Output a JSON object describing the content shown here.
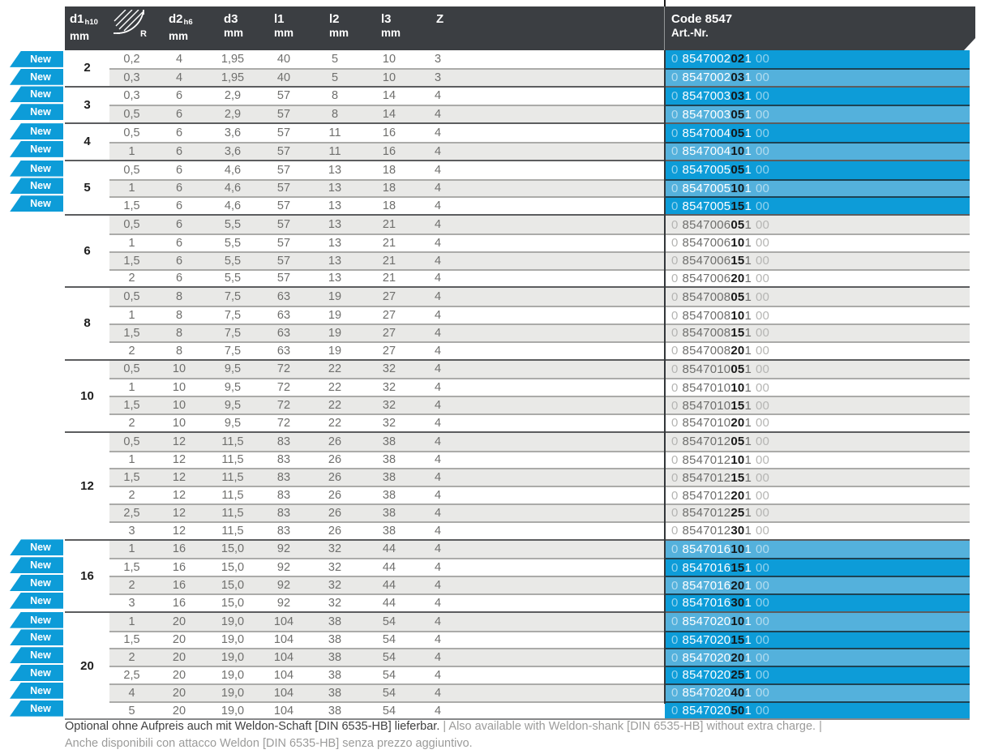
{
  "table": {
    "badge_label": "New",
    "columns": {
      "d1": {
        "main": "d1",
        "sub": "h10",
        "unit": "mm"
      },
      "r": {
        "icon": "corner-radius-icon",
        "label": "R"
      },
      "d2": {
        "main": "d2",
        "sub": "h6",
        "unit": "mm"
      },
      "d3": {
        "main": "d3",
        "unit": "mm"
      },
      "l1": {
        "main": "l1",
        "unit": "mm"
      },
      "l2": {
        "main": "l2",
        "unit": "mm"
      },
      "l3": {
        "main": "l3",
        "unit": "mm"
      },
      "z": {
        "main": "Z"
      },
      "code": {
        "line1": "Code 8547",
        "line2": "Art.-Nr."
      }
    },
    "groups": [
      {
        "d1": "2",
        "rows": [
          {
            "new": true,
            "r": "0,2",
            "d2": "4",
            "d3": "1,95",
            "l1": "40",
            "l2": "5",
            "l3": "10",
            "z": "3",
            "art": {
              "a": "0",
              "b": "8547002",
              "c": "02",
              "d": "1",
              "e": "00"
            }
          },
          {
            "new": true,
            "r": "0,3",
            "d2": "4",
            "d3": "1,95",
            "l1": "40",
            "l2": "5",
            "l3": "10",
            "z": "3",
            "art": {
              "a": "0",
              "b": "8547002",
              "c": "03",
              "d": "1",
              "e": "00"
            }
          }
        ]
      },
      {
        "d1": "3",
        "rows": [
          {
            "new": true,
            "r": "0,3",
            "d2": "6",
            "d3": "2,9",
            "l1": "57",
            "l2": "8",
            "l3": "14",
            "z": "4",
            "art": {
              "a": "0",
              "b": "8547003",
              "c": "03",
              "d": "1",
              "e": "00"
            }
          },
          {
            "new": true,
            "r": "0,5",
            "d2": "6",
            "d3": "2,9",
            "l1": "57",
            "l2": "8",
            "l3": "14",
            "z": "4",
            "art": {
              "a": "0",
              "b": "8547003",
              "c": "05",
              "d": "1",
              "e": "00"
            }
          }
        ]
      },
      {
        "d1": "4",
        "rows": [
          {
            "new": true,
            "r": "0,5",
            "d2": "6",
            "d3": "3,6",
            "l1": "57",
            "l2": "11",
            "l3": "16",
            "z": "4",
            "art": {
              "a": "0",
              "b": "8547004",
              "c": "05",
              "d": "1",
              "e": "00"
            }
          },
          {
            "new": true,
            "r": "1",
            "d2": "6",
            "d3": "3,6",
            "l1": "57",
            "l2": "11",
            "l3": "16",
            "z": "4",
            "art": {
              "a": "0",
              "b": "8547004",
              "c": "10",
              "d": "1",
              "e": "00"
            }
          }
        ]
      },
      {
        "d1": "5",
        "rows": [
          {
            "new": true,
            "r": "0,5",
            "d2": "6",
            "d3": "4,6",
            "l1": "57",
            "l2": "13",
            "l3": "18",
            "z": "4",
            "art": {
              "a": "0",
              "b": "8547005",
              "c": "05",
              "d": "1",
              "e": "00"
            }
          },
          {
            "new": true,
            "r": "1",
            "d2": "6",
            "d3": "4,6",
            "l1": "57",
            "l2": "13",
            "l3": "18",
            "z": "4",
            "art": {
              "a": "0",
              "b": "8547005",
              "c": "10",
              "d": "1",
              "e": "00"
            }
          },
          {
            "new": true,
            "r": "1,5",
            "d2": "6",
            "d3": "4,6",
            "l1": "57",
            "l2": "13",
            "l3": "18",
            "z": "4",
            "art": {
              "a": "0",
              "b": "8547005",
              "c": "15",
              "d": "1",
              "e": "00"
            }
          }
        ]
      },
      {
        "d1": "6",
        "rows": [
          {
            "new": false,
            "r": "0,5",
            "d2": "6",
            "d3": "5,5",
            "l1": "57",
            "l2": "13",
            "l3": "21",
            "z": "4",
            "art": {
              "a": "0",
              "b": "8547006",
              "c": "05",
              "d": "1",
              "e": "00"
            }
          },
          {
            "new": false,
            "r": "1",
            "d2": "6",
            "d3": "5,5",
            "l1": "57",
            "l2": "13",
            "l3": "21",
            "z": "4",
            "art": {
              "a": "0",
              "b": "8547006",
              "c": "10",
              "d": "1",
              "e": "00"
            }
          },
          {
            "new": false,
            "r": "1,5",
            "d2": "6",
            "d3": "5,5",
            "l1": "57",
            "l2": "13",
            "l3": "21",
            "z": "4",
            "art": {
              "a": "0",
              "b": "8547006",
              "c": "15",
              "d": "1",
              "e": "00"
            }
          },
          {
            "new": false,
            "r": "2",
            "d2": "6",
            "d3": "5,5",
            "l1": "57",
            "l2": "13",
            "l3": "21",
            "z": "4",
            "art": {
              "a": "0",
              "b": "8547006",
              "c": "20",
              "d": "1",
              "e": "00"
            }
          }
        ]
      },
      {
        "d1": "8",
        "rows": [
          {
            "new": false,
            "r": "0,5",
            "d2": "8",
            "d3": "7,5",
            "l1": "63",
            "l2": "19",
            "l3": "27",
            "z": "4",
            "art": {
              "a": "0",
              "b": "8547008",
              "c": "05",
              "d": "1",
              "e": "00"
            }
          },
          {
            "new": false,
            "r": "1",
            "d2": "8",
            "d3": "7,5",
            "l1": "63",
            "l2": "19",
            "l3": "27",
            "z": "4",
            "art": {
              "a": "0",
              "b": "8547008",
              "c": "10",
              "d": "1",
              "e": "00"
            }
          },
          {
            "new": false,
            "r": "1,5",
            "d2": "8",
            "d3": "7,5",
            "l1": "63",
            "l2": "19",
            "l3": "27",
            "z": "4",
            "art": {
              "a": "0",
              "b": "8547008",
              "c": "15",
              "d": "1",
              "e": "00"
            }
          },
          {
            "new": false,
            "r": "2",
            "d2": "8",
            "d3": "7,5",
            "l1": "63",
            "l2": "19",
            "l3": "27",
            "z": "4",
            "art": {
              "a": "0",
              "b": "8547008",
              "c": "20",
              "d": "1",
              "e": "00"
            }
          }
        ]
      },
      {
        "d1": "10",
        "rows": [
          {
            "new": false,
            "r": "0,5",
            "d2": "10",
            "d3": "9,5",
            "l1": "72",
            "l2": "22",
            "l3": "32",
            "z": "4",
            "art": {
              "a": "0",
              "b": "8547010",
              "c": "05",
              "d": "1",
              "e": "00"
            }
          },
          {
            "new": false,
            "r": "1",
            "d2": "10",
            "d3": "9,5",
            "l1": "72",
            "l2": "22",
            "l3": "32",
            "z": "4",
            "art": {
              "a": "0",
              "b": "8547010",
              "c": "10",
              "d": "1",
              "e": "00"
            }
          },
          {
            "new": false,
            "r": "1,5",
            "d2": "10",
            "d3": "9,5",
            "l1": "72",
            "l2": "22",
            "l3": "32",
            "z": "4",
            "art": {
              "a": "0",
              "b": "8547010",
              "c": "15",
              "d": "1",
              "e": "00"
            }
          },
          {
            "new": false,
            "r": "2",
            "d2": "10",
            "d3": "9,5",
            "l1": "72",
            "l2": "22",
            "l3": "32",
            "z": "4",
            "art": {
              "a": "0",
              "b": "8547010",
              "c": "20",
              "d": "1",
              "e": "00"
            }
          }
        ]
      },
      {
        "d1": "12",
        "rows": [
          {
            "new": false,
            "r": "0,5",
            "d2": "12",
            "d3": "11,5",
            "l1": "83",
            "l2": "26",
            "l3": "38",
            "z": "4",
            "art": {
              "a": "0",
              "b": "8547012",
              "c": "05",
              "d": "1",
              "e": "00"
            }
          },
          {
            "new": false,
            "r": "1",
            "d2": "12",
            "d3": "11,5",
            "l1": "83",
            "l2": "26",
            "l3": "38",
            "z": "4",
            "art": {
              "a": "0",
              "b": "8547012",
              "c": "10",
              "d": "1",
              "e": "00"
            }
          },
          {
            "new": false,
            "r": "1,5",
            "d2": "12",
            "d3": "11,5",
            "l1": "83",
            "l2": "26",
            "l3": "38",
            "z": "4",
            "art": {
              "a": "0",
              "b": "8547012",
              "c": "15",
              "d": "1",
              "e": "00"
            }
          },
          {
            "new": false,
            "r": "2",
            "d2": "12",
            "d3": "11,5",
            "l1": "83",
            "l2": "26",
            "l3": "38",
            "z": "4",
            "art": {
              "a": "0",
              "b": "8547012",
              "c": "20",
              "d": "1",
              "e": "00"
            }
          },
          {
            "new": false,
            "r": "2,5",
            "d2": "12",
            "d3": "11,5",
            "l1": "83",
            "l2": "26",
            "l3": "38",
            "z": "4",
            "art": {
              "a": "0",
              "b": "8547012",
              "c": "25",
              "d": "1",
              "e": "00"
            }
          },
          {
            "new": false,
            "r": "3",
            "d2": "12",
            "d3": "11,5",
            "l1": "83",
            "l2": "26",
            "l3": "38",
            "z": "4",
            "art": {
              "a": "0",
              "b": "8547012",
              "c": "30",
              "d": "1",
              "e": "00"
            }
          }
        ]
      },
      {
        "d1": "16",
        "rows": [
          {
            "new": true,
            "r": "1",
            "d2": "16",
            "d3": "15,0",
            "l1": "92",
            "l2": "32",
            "l3": "44",
            "z": "4",
            "art": {
              "a": "0",
              "b": "8547016",
              "c": "10",
              "d": "1",
              "e": "00"
            }
          },
          {
            "new": true,
            "r": "1,5",
            "d2": "16",
            "d3": "15,0",
            "l1": "92",
            "l2": "32",
            "l3": "44",
            "z": "4",
            "art": {
              "a": "0",
              "b": "8547016",
              "c": "15",
              "d": "1",
              "e": "00"
            }
          },
          {
            "new": true,
            "r": "2",
            "d2": "16",
            "d3": "15,0",
            "l1": "92",
            "l2": "32",
            "l3": "44",
            "z": "4",
            "art": {
              "a": "0",
              "b": "8547016",
              "c": "20",
              "d": "1",
              "e": "00"
            }
          },
          {
            "new": true,
            "r": "3",
            "d2": "16",
            "d3": "15,0",
            "l1": "92",
            "l2": "32",
            "l3": "44",
            "z": "4",
            "art": {
              "a": "0",
              "b": "8547016",
              "c": "30",
              "d": "1",
              "e": "00"
            }
          }
        ]
      },
      {
        "d1": "20",
        "rows": [
          {
            "new": true,
            "r": "1",
            "d2": "20",
            "d3": "19,0",
            "l1": "104",
            "l2": "38",
            "l3": "54",
            "z": "4",
            "art": {
              "a": "0",
              "b": "8547020",
              "c": "10",
              "d": "1",
              "e": "00"
            }
          },
          {
            "new": true,
            "r": "1,5",
            "d2": "20",
            "d3": "19,0",
            "l1": "104",
            "l2": "38",
            "l3": "54",
            "z": "4",
            "art": {
              "a": "0",
              "b": "8547020",
              "c": "15",
              "d": "1",
              "e": "00"
            }
          },
          {
            "new": true,
            "r": "2",
            "d2": "20",
            "d3": "19,0",
            "l1": "104",
            "l2": "38",
            "l3": "54",
            "z": "4",
            "art": {
              "a": "0",
              "b": "8547020",
              "c": "20",
              "d": "1",
              "e": "00"
            }
          },
          {
            "new": true,
            "r": "2,5",
            "d2": "20",
            "d3": "19,0",
            "l1": "104",
            "l2": "38",
            "l3": "54",
            "z": "4",
            "art": {
              "a": "0",
              "b": "8547020",
              "c": "25",
              "d": "1",
              "e": "00"
            }
          },
          {
            "new": true,
            "r": "4",
            "d2": "20",
            "d3": "19,0",
            "l1": "104",
            "l2": "38",
            "l3": "54",
            "z": "4",
            "art": {
              "a": "0",
              "b": "8547020",
              "c": "40",
              "d": "1",
              "e": "00"
            }
          },
          {
            "new": true,
            "r": "5",
            "d2": "20",
            "d3": "19,0",
            "l1": "104",
            "l2": "38",
            "l3": "54",
            "z": "4",
            "art": {
              "a": "0",
              "b": "8547020",
              "c": "50",
              "d": "1",
              "e": "00"
            }
          }
        ]
      }
    ]
  },
  "footer": {
    "de": "Optional ohne Aufpreis auch mit Weldon-Schaft [DIN 6535-HB] lieferbar.",
    "sep": " | ",
    "en": "Also available with Weldon-shank [DIN 6535-HB] without extra charge. |",
    "it": "Anche disponibili con attacco Weldon [DIN 6535-HB] senza prezzo aggiuntivo."
  },
  "colors": {
    "header_bg": "#3b3e42",
    "new_blue_dark": "#0d9cd8",
    "new_blue_light": "#54b1dc",
    "row_shade": "#e9e9e7"
  }
}
